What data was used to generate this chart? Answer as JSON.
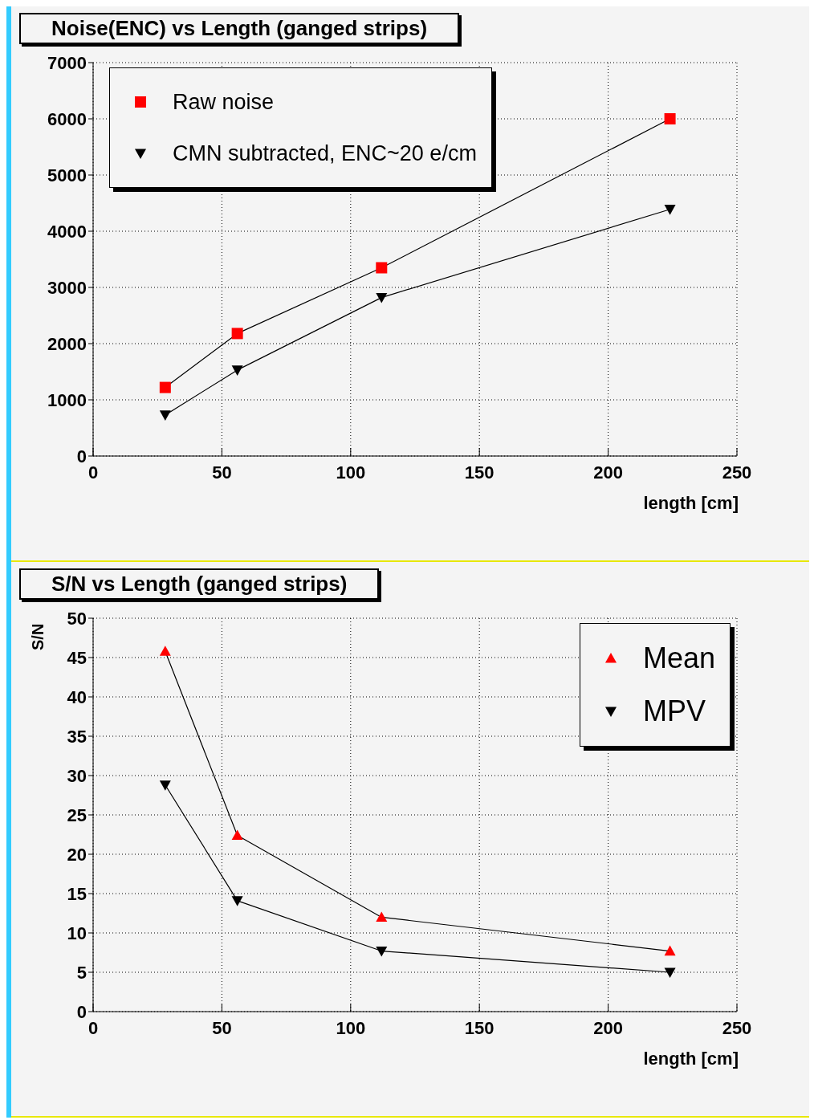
{
  "chart_data": [
    {
      "type": "line",
      "title": "Noise(ENC) vs Length (ganged strips)",
      "xlabel": "length [cm]",
      "x": [
        28,
        56,
        112,
        224
      ],
      "xlim": [
        0,
        250
      ],
      "xticks": [
        0,
        50,
        100,
        150,
        200,
        250
      ],
      "ylim": [
        0,
        7000
      ],
      "yticks": [
        0,
        1000,
        2000,
        3000,
        4000,
        5000,
        6000,
        7000
      ],
      "grid": true,
      "legend": "top left",
      "series": [
        {
          "name": "Raw noise",
          "color": "#ff0000",
          "marker": "square",
          "values": [
            1220,
            2180,
            3350,
            6000
          ]
        },
        {
          "name": "CMN subtracted, ENC~20 e/cm",
          "color": "#000000",
          "marker": "triangle-down",
          "values": [
            730,
            1530,
            2820,
            4390
          ]
        }
      ]
    },
    {
      "type": "line",
      "title": "S/N vs Length (ganged strips)",
      "xlabel": "length [cm]",
      "ylabel": "S/N",
      "x": [
        28,
        56,
        112,
        224
      ],
      "xlim": [
        0,
        250
      ],
      "xticks": [
        0,
        50,
        100,
        150,
        200,
        250
      ],
      "ylim": [
        0,
        50
      ],
      "yticks": [
        0,
        5,
        10,
        15,
        20,
        25,
        30,
        35,
        40,
        45,
        50
      ],
      "grid": true,
      "legend": "top right",
      "series": [
        {
          "name": "Mean",
          "color": "#ff0000",
          "marker": "triangle",
          "values": [
            45.8,
            22.4,
            12.0,
            7.7
          ]
        },
        {
          "name": "MPV",
          "color": "#000000",
          "marker": "triangle-down",
          "values": [
            28.8,
            14.1,
            7.7,
            5.0
          ]
        }
      ]
    }
  ]
}
